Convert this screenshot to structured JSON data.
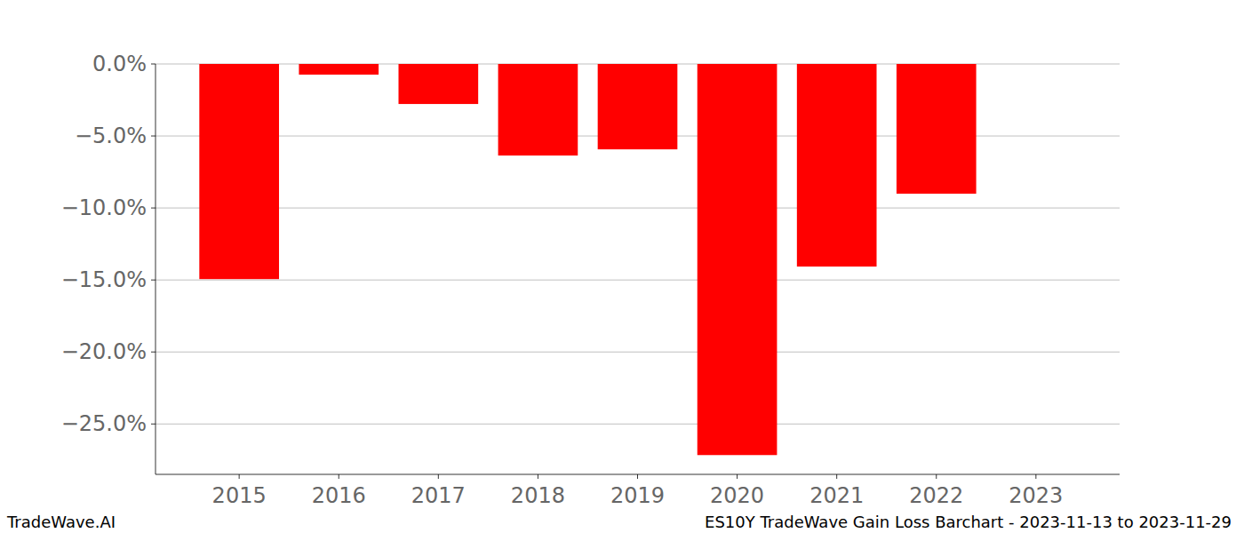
{
  "chart_data": {
    "type": "bar",
    "title": "ES10Y TradeWave Gain Loss Barchart - 2023-11-13 to 2023-11-29",
    "annotations": [
      "TradeWave.AI"
    ],
    "categories": [
      "2015",
      "2016",
      "2017",
      "2018",
      "2019",
      "2020",
      "2021",
      "2022",
      "2023"
    ],
    "values": [
      -14.94,
      -0.74,
      -2.78,
      -6.36,
      -5.93,
      -27.16,
      -14.07,
      -9.01,
      null
    ],
    "color": "#ff0000",
    "ylim": [
      -28.5,
      0
    ],
    "yticks": [
      {
        "value": 0,
        "label": "0.0%"
      },
      {
        "value": -5,
        "label": "−5.0%"
      },
      {
        "value": -10,
        "label": "−10.0%"
      },
      {
        "value": -15,
        "label": "−15.0%"
      },
      {
        "value": -20,
        "label": "−20.0%"
      },
      {
        "value": -25,
        "label": "−25.0%"
      }
    ],
    "grid": true
  }
}
